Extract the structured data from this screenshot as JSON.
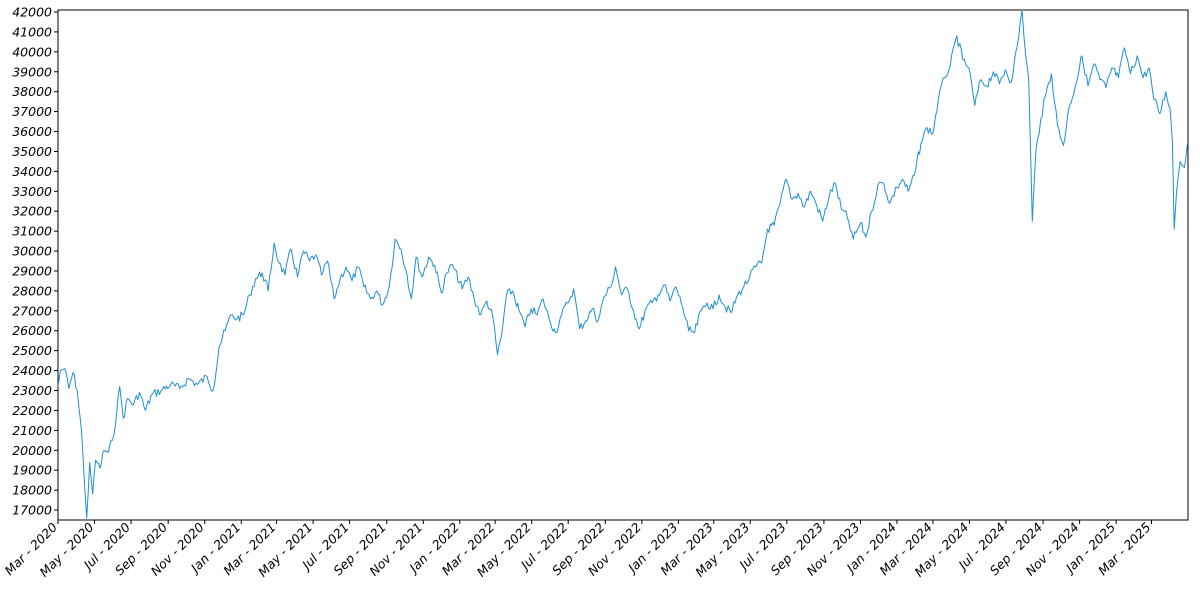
{
  "chart_data": {
    "type": "line",
    "title": "",
    "xlabel": "",
    "ylabel": "",
    "grid": false,
    "legend": "none",
    "ylim": [
      16500,
      42100
    ],
    "xlim": [
      "2020-03-01",
      "2025-05-01"
    ],
    "line_color": "#1f8fd0",
    "y_ticks": [
      17000,
      18000,
      19000,
      20000,
      21000,
      22000,
      23000,
      24000,
      25000,
      26000,
      27000,
      28000,
      29000,
      30000,
      31000,
      32000,
      33000,
      34000,
      35000,
      36000,
      37000,
      38000,
      39000,
      40000,
      41000,
      42000
    ],
    "y_tick_labels": [
      "17000",
      "18000",
      "19000",
      "20000",
      "21000",
      "22000",
      "23000",
      "24000",
      "25000",
      "26000",
      "27000",
      "28000",
      "29000",
      "30000",
      "31000",
      "32000",
      "33000",
      "34000",
      "35000",
      "36000",
      "37000",
      "38000",
      "39000",
      "40000",
      "41000",
      "42000"
    ],
    "x_ticks": [
      "2020-03-01",
      "2020-05-01",
      "2020-07-01",
      "2020-09-01",
      "2020-11-01",
      "2021-01-01",
      "2021-03-01",
      "2021-05-01",
      "2021-07-01",
      "2021-09-01",
      "2021-11-01",
      "2022-01-01",
      "2022-03-01",
      "2022-05-01",
      "2022-07-01",
      "2022-09-01",
      "2022-11-01",
      "2023-01-01",
      "2023-03-01",
      "2023-05-01",
      "2023-07-01",
      "2023-09-01",
      "2023-11-01",
      "2024-01-01",
      "2024-03-01",
      "2024-05-01",
      "2024-07-01",
      "2024-09-01",
      "2024-11-01",
      "2025-01-01",
      "2025-03-01"
    ],
    "x_tick_labels": [
      "Mar - 2020",
      "May - 2020",
      "Jul - 2020",
      "Sep - 2020",
      "Nov - 2020",
      "Jan - 2021",
      "Mar - 2021",
      "May - 2021",
      "Jul - 2021",
      "Sep - 2021",
      "Nov - 2021",
      "Jan - 2022",
      "Mar - 2022",
      "May - 2022",
      "Jul - 2022",
      "Sep - 2022",
      "Nov - 2022",
      "Jan - 2023",
      "Mar - 2023",
      "May - 2023",
      "Jul - 2023",
      "Sep - 2023",
      "Nov - 2023",
      "Jan - 2024",
      "Mar - 2024",
      "May - 2024",
      "Jul - 2024",
      "Sep - 2024",
      "Nov - 2024",
      "Jan - 2025",
      "Mar - 2025"
    ],
    "series": [
      {
        "points": [
          [
            "2020-03-01",
            23200
          ],
          [
            "2020-03-05",
            24000
          ],
          [
            "2020-03-12",
            24100
          ],
          [
            "2020-03-19",
            23100
          ],
          [
            "2020-03-26",
            23900
          ],
          [
            "2020-04-02",
            23000
          ],
          [
            "2020-04-09",
            21000
          ],
          [
            "2020-04-14",
            18500
          ],
          [
            "2020-04-18",
            16600
          ],
          [
            "2020-04-23",
            19400
          ],
          [
            "2020-04-28",
            17800
          ],
          [
            "2020-05-03",
            19500
          ],
          [
            "2020-05-10",
            19100
          ],
          [
            "2020-05-17",
            20000
          ],
          [
            "2020-05-24",
            19900
          ],
          [
            "2020-05-31",
            20500
          ],
          [
            "2020-06-07",
            21900
          ],
          [
            "2020-06-12",
            23200
          ],
          [
            "2020-06-18",
            21600
          ],
          [
            "2020-06-25",
            22600
          ],
          [
            "2020-07-05",
            22300
          ],
          [
            "2020-07-15",
            22900
          ],
          [
            "2020-07-25",
            22000
          ],
          [
            "2020-08-05",
            22800
          ],
          [
            "2020-08-20",
            23000
          ],
          [
            "2020-09-05",
            23300
          ],
          [
            "2020-09-20",
            23100
          ],
          [
            "2020-10-05",
            23600
          ],
          [
            "2020-10-20",
            23300
          ],
          [
            "2020-11-05",
            23700
          ],
          [
            "2020-11-15",
            23000
          ],
          [
            "2020-11-25",
            25200
          ],
          [
            "2020-12-05",
            26000
          ],
          [
            "2020-12-15",
            26800
          ],
          [
            "2020-12-25",
            26600
          ],
          [
            "2021-01-05",
            26800
          ],
          [
            "2021-01-15",
            27800
          ],
          [
            "2021-01-25",
            28600
          ],
          [
            "2021-02-05",
            28900
          ],
          [
            "2021-02-15",
            28000
          ],
          [
            "2021-02-25",
            30400
          ],
          [
            "2021-03-05",
            29400
          ],
          [
            "2021-03-15",
            28800
          ],
          [
            "2021-03-25",
            30100
          ],
          [
            "2021-04-05",
            28700
          ],
          [
            "2021-04-15",
            30000
          ],
          [
            "2021-04-25",
            29500
          ],
          [
            "2021-05-05",
            29800
          ],
          [
            "2021-05-15",
            28800
          ],
          [
            "2021-05-25",
            29500
          ],
          [
            "2021-06-05",
            27600
          ],
          [
            "2021-06-15",
            28600
          ],
          [
            "2021-06-25",
            29200
          ],
          [
            "2021-07-05",
            28500
          ],
          [
            "2021-07-15",
            29200
          ],
          [
            "2021-07-25",
            28200
          ],
          [
            "2021-08-05",
            27600
          ],
          [
            "2021-08-15",
            28000
          ],
          [
            "2021-08-25",
            27300
          ],
          [
            "2021-09-05",
            28200
          ],
          [
            "2021-09-15",
            30600
          ],
          [
            "2021-09-25",
            30100
          ],
          [
            "2021-10-05",
            28800
          ],
          [
            "2021-10-12",
            27600
          ],
          [
            "2021-10-20",
            29700
          ],
          [
            "2021-10-30",
            28700
          ],
          [
            "2021-11-10",
            29700
          ],
          [
            "2021-11-20",
            29300
          ],
          [
            "2021-12-01",
            27900
          ],
          [
            "2021-12-10",
            28900
          ],
          [
            "2021-12-20",
            29300
          ],
          [
            "2022-01-05",
            28100
          ],
          [
            "2022-01-15",
            28700
          ],
          [
            "2022-01-25",
            27600
          ],
          [
            "2022-02-05",
            26800
          ],
          [
            "2022-02-15",
            27500
          ],
          [
            "2022-02-25",
            26700
          ],
          [
            "2022-03-05",
            24800
          ],
          [
            "2022-03-12",
            25800
          ],
          [
            "2022-03-20",
            27800
          ],
          [
            "2022-03-30",
            28000
          ],
          [
            "2022-04-10",
            27000
          ],
          [
            "2022-04-20",
            26200
          ],
          [
            "2022-04-30",
            27100
          ],
          [
            "2022-05-10",
            26800
          ],
          [
            "2022-05-20",
            27600
          ],
          [
            "2022-05-30",
            26600
          ],
          [
            "2022-06-10",
            25900
          ],
          [
            "2022-06-20",
            26800
          ],
          [
            "2022-06-30",
            27400
          ],
          [
            "2022-07-10",
            28100
          ],
          [
            "2022-07-20",
            26100
          ],
          [
            "2022-07-30",
            26500
          ],
          [
            "2022-08-10",
            27100
          ],
          [
            "2022-08-20",
            26500
          ],
          [
            "2022-08-30",
            27700
          ],
          [
            "2022-09-10",
            28200
          ],
          [
            "2022-09-18",
            29200
          ],
          [
            "2022-09-28",
            27800
          ],
          [
            "2022-10-08",
            28100
          ],
          [
            "2022-10-18",
            27000
          ],
          [
            "2022-10-28",
            26100
          ],
          [
            "2022-11-08",
            27100
          ],
          [
            "2022-11-18",
            27400
          ],
          [
            "2022-11-28",
            27800
          ],
          [
            "2022-12-08",
            28300
          ],
          [
            "2022-12-18",
            27500
          ],
          [
            "2022-12-28",
            28200
          ],
          [
            "2023-01-08",
            27200
          ],
          [
            "2023-01-18",
            26000
          ],
          [
            "2023-01-28",
            25900
          ],
          [
            "2023-02-08",
            27000
          ],
          [
            "2023-02-18",
            27400
          ],
          [
            "2023-02-28",
            27100
          ],
          [
            "2023-03-10",
            27800
          ],
          [
            "2023-03-20",
            27200
          ],
          [
            "2023-03-30",
            26900
          ],
          [
            "2023-04-10",
            27800
          ],
          [
            "2023-04-20",
            28200
          ],
          [
            "2023-04-30",
            28700
          ],
          [
            "2023-05-10",
            29200
          ],
          [
            "2023-05-20",
            29400
          ],
          [
            "2023-05-30",
            31100
          ],
          [
            "2023-06-10",
            31300
          ],
          [
            "2023-06-20",
            32400
          ],
          [
            "2023-06-30",
            33600
          ],
          [
            "2023-07-10",
            32600
          ],
          [
            "2023-07-20",
            32900
          ],
          [
            "2023-07-30",
            32200
          ],
          [
            "2023-08-10",
            33000
          ],
          [
            "2023-08-20",
            32300
          ],
          [
            "2023-08-30",
            31500
          ],
          [
            "2023-09-10",
            32800
          ],
          [
            "2023-09-20",
            33400
          ],
          [
            "2023-09-30",
            32100
          ],
          [
            "2023-10-10",
            31700
          ],
          [
            "2023-10-20",
            30600
          ],
          [
            "2023-11-01",
            31400
          ],
          [
            "2023-11-10",
            30700
          ],
          [
            "2023-11-20",
            32000
          ],
          [
            "2023-11-30",
            33300
          ],
          [
            "2023-12-10",
            33400
          ],
          [
            "2023-12-20",
            32400
          ],
          [
            "2024-01-01",
            33200
          ],
          [
            "2024-01-10",
            33600
          ],
          [
            "2024-01-20",
            33000
          ],
          [
            "2024-01-30",
            33800
          ],
          [
            "2024-02-10",
            35400
          ],
          [
            "2024-02-20",
            36200
          ],
          [
            "2024-03-01",
            35900
          ],
          [
            "2024-03-10",
            37600
          ],
          [
            "2024-03-20",
            38700
          ],
          [
            "2024-03-30",
            39300
          ],
          [
            "2024-04-10",
            40800
          ],
          [
            "2024-04-20",
            39600
          ],
          [
            "2024-04-30",
            39200
          ],
          [
            "2024-05-10",
            37300
          ],
          [
            "2024-05-20",
            38600
          ],
          [
            "2024-05-30",
            38300
          ],
          [
            "2024-06-10",
            39000
          ],
          [
            "2024-06-20",
            38400
          ],
          [
            "2024-06-30",
            39100
          ],
          [
            "2024-07-10",
            38500
          ],
          [
            "2024-07-20",
            40300
          ],
          [
            "2024-07-28",
            42100
          ],
          [
            "2024-08-03",
            39800
          ],
          [
            "2024-08-08",
            38600
          ],
          [
            "2024-08-14",
            31500
          ],
          [
            "2024-08-20",
            35000
          ],
          [
            "2024-08-28",
            36600
          ],
          [
            "2024-09-05",
            37800
          ],
          [
            "2024-09-15",
            38900
          ],
          [
            "2024-09-25",
            36300
          ],
          [
            "2024-10-05",
            35300
          ],
          [
            "2024-10-15",
            37300
          ],
          [
            "2024-10-25",
            38300
          ],
          [
            "2024-11-05",
            39800
          ],
          [
            "2024-11-15",
            38300
          ],
          [
            "2024-11-25",
            39400
          ],
          [
            "2024-12-05",
            38600
          ],
          [
            "2024-12-15",
            38200
          ],
          [
            "2024-12-25",
            39200
          ],
          [
            "2025-01-05",
            38700
          ],
          [
            "2025-01-15",
            40200
          ],
          [
            "2025-01-25",
            38900
          ],
          [
            "2025-02-05",
            39800
          ],
          [
            "2025-02-15",
            38700
          ],
          [
            "2025-02-25",
            39200
          ],
          [
            "2025-03-05",
            37600
          ],
          [
            "2025-03-15",
            36900
          ],
          [
            "2025-03-25",
            38000
          ],
          [
            "2025-04-01",
            37200
          ],
          [
            "2025-04-05",
            35500
          ],
          [
            "2025-04-08",
            31100
          ],
          [
            "2025-04-12",
            33000
          ],
          [
            "2025-04-18",
            34500
          ],
          [
            "2025-04-25",
            34200
          ],
          [
            "2025-04-30",
            35400
          ]
        ]
      }
    ]
  }
}
